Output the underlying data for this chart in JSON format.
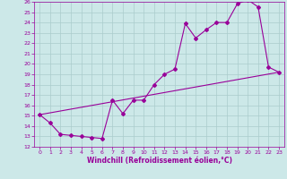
{
  "xlabel": "Windchill (Refroidissement éolien,°C)",
  "xlim": [
    -0.5,
    23.5
  ],
  "ylim": [
    12,
    26
  ],
  "xticks": [
    0,
    1,
    2,
    3,
    4,
    5,
    6,
    7,
    8,
    9,
    10,
    11,
    12,
    13,
    14,
    15,
    16,
    17,
    18,
    19,
    20,
    21,
    22,
    23
  ],
  "yticks": [
    12,
    13,
    14,
    15,
    16,
    17,
    18,
    19,
    20,
    21,
    22,
    23,
    24,
    25,
    26
  ],
  "line_color": "#990099",
  "bg_color": "#cce8e8",
  "grid_color": "#aacccc",
  "line1_x": [
    0,
    1,
    2,
    3,
    4,
    5,
    6,
    7,
    8,
    9,
    10,
    11,
    12,
    13,
    14,
    15,
    16,
    17,
    18,
    19,
    20,
    21,
    22,
    23
  ],
  "line1_y": [
    15.1,
    14.3,
    13.2,
    13.1,
    13.0,
    12.9,
    12.8,
    16.5,
    15.2,
    16.5,
    16.5,
    18.0,
    19.0,
    19.5,
    23.9,
    22.5,
    23.3,
    24.0,
    24.0,
    25.8,
    26.2,
    25.5,
    19.7,
    19.2
  ],
  "line2_x": [
    0,
    23
  ],
  "line2_y": [
    15.1,
    19.2
  ],
  "marker": "D",
  "marker_size": 2,
  "linewidth": 0.8,
  "tick_fontsize": 4.5,
  "xlabel_fontsize": 5.5
}
